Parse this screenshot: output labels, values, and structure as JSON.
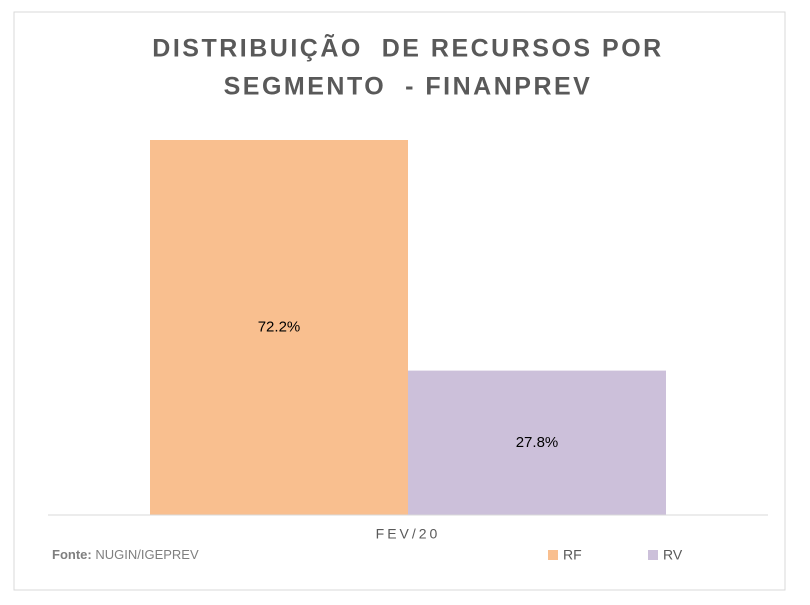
{
  "chart_data": {
    "type": "bar",
    "title": [
      "DISTRIBUIÇÃO  DE RECURSOS POR",
      "SEGMENTO  - FINANPREV"
    ],
    "categories": [
      "FEV/20"
    ],
    "series": [
      {
        "name": "RF",
        "color": "#f9bf8f",
        "values": [
          72.2
        ],
        "value_labels": [
          "72.2%"
        ]
      },
      {
        "name": "RV",
        "color": "#ccc0da",
        "values": [
          27.8
        ],
        "value_labels": [
          "27.8%"
        ]
      }
    ],
    "source": {
      "label": "Fonte:",
      "text": "NUGIN/IGEPREV"
    },
    "legend": "bottom-right"
  }
}
